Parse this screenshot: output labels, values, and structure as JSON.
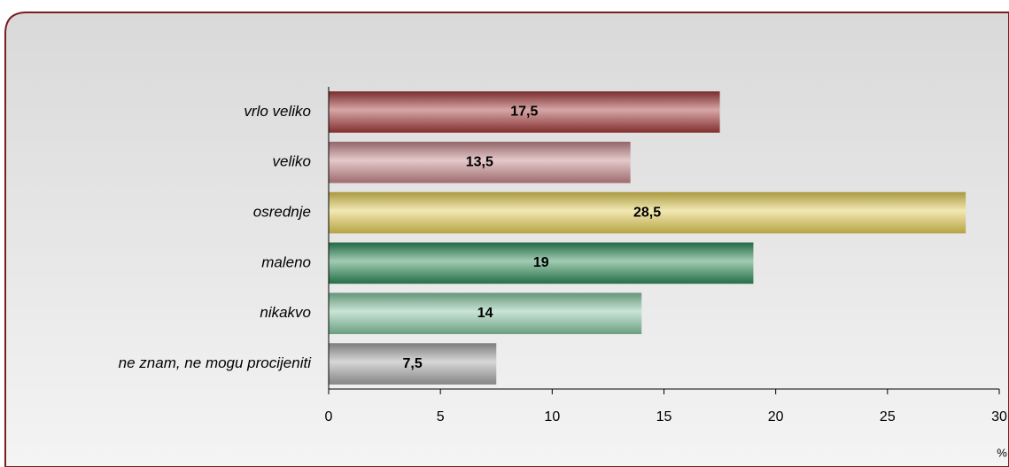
{
  "chart_data": {
    "type": "bar",
    "orientation": "horizontal",
    "categories": [
      "vrlo veliko",
      "veliko",
      "osrednje",
      "maleno",
      "nikakvo",
      "ne znam, ne mogu procijeniti"
    ],
    "values": [
      17.5,
      13.5,
      28.5,
      19,
      14,
      7.5
    ],
    "value_labels": [
      "17,5",
      "13,5",
      "28,5",
      "19",
      "14",
      "7,5"
    ],
    "colors": [
      "#a33a3a",
      "#c4868a",
      "#e3cc55",
      "#2e8b57",
      "#86c6a2",
      "#a5a5a5"
    ],
    "xlim": [
      0,
      30
    ],
    "xticks": [
      0,
      5,
      10,
      15,
      20,
      25,
      30
    ],
    "xlabel": "%",
    "grid": false
  }
}
